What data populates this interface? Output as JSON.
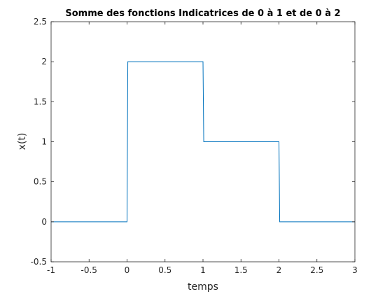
{
  "chart_data": {
    "type": "line",
    "title": "Somme des fonctions Indicatrices de 0 à 1 et de 0 à 2",
    "xlabel": "temps",
    "ylabel": "x(t)",
    "xlim": [
      -1,
      3
    ],
    "ylim": [
      -0.5,
      2.5
    ],
    "xticks": [
      -1,
      -0.5,
      0,
      0.5,
      1,
      1.5,
      2,
      2.5,
      3
    ],
    "xtick_labels": [
      "-1",
      "-0.5",
      "0",
      "0.5",
      "1",
      "1.5",
      "2",
      "2.5",
      "3"
    ],
    "yticks": [
      -0.5,
      0,
      0.5,
      1,
      1.5,
      2,
      2.5
    ],
    "ytick_labels": [
      "-0.5",
      "0",
      "0.5",
      "1",
      "1.5",
      "2",
      "2.5"
    ],
    "grid": false,
    "series": [
      {
        "color": "#0072bd",
        "x": [
          -1,
          0,
          0.01,
          1,
          1.01,
          2,
          2.01,
          3
        ],
        "y": [
          0,
          0,
          2,
          2,
          1,
          1,
          0,
          0
        ]
      }
    ]
  }
}
